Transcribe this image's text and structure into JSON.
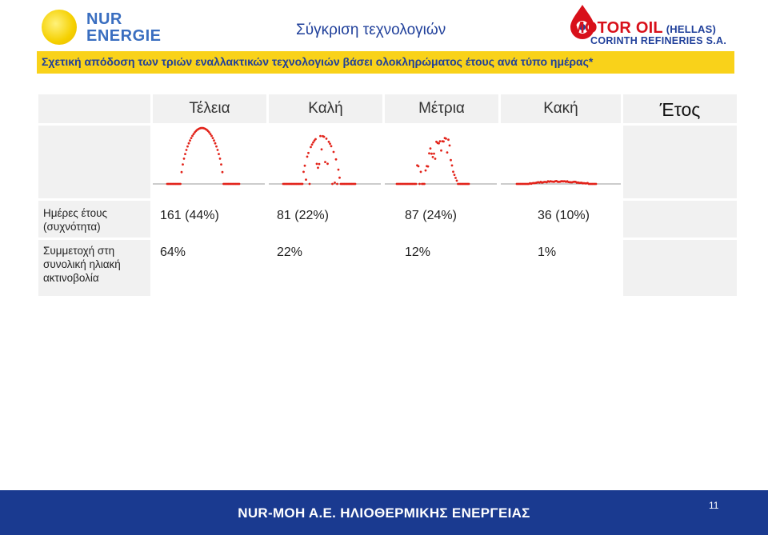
{
  "header": {
    "logo_left": {
      "line1": "NUR",
      "line2": "ENERGIE"
    },
    "title": "Σύγκριση τεχνολογιών",
    "logo_right": {
      "line1": "MOTOR OIL",
      "line1b": "(HELLAS)",
      "line2": "CORINTH REFINERIES S.A."
    }
  },
  "subtitle": "Σχετική απόδοση των τριών εναλλακτικών τεχνολογιών βάσει ολοκληρώματος έτους ανά τύπο ημέρας*",
  "table": {
    "columns": [
      "Τέλεια",
      "Καλή",
      "Μέτρια",
      "Κακή",
      "Έτος"
    ],
    "rows": [
      {
        "label": "Ημέρες έτους (συχνότητα)",
        "values": [
          "161 (44%)",
          "81 (22%)",
          "87 (24%)",
          "36 (10%)",
          ""
        ]
      },
      {
        "label": "Συμμετοχή στη συνολική ηλιακή ακτινοβολία",
        "values": [
          "64%",
          "22%",
          "12%",
          "1%",
          ""
        ]
      }
    ]
  },
  "footer": {
    "text": "NUR-MOH A.E. ΗΛΙΟΘΕΡΜΙΚΗΣ ΕΝΕΡΓΕΙΑΣ",
    "page": "11"
  },
  "colors": {
    "title": "#1f3f9a",
    "bar": "#f9d21a",
    "footer": "#1a3a90",
    "curve": "#e2231a"
  }
}
